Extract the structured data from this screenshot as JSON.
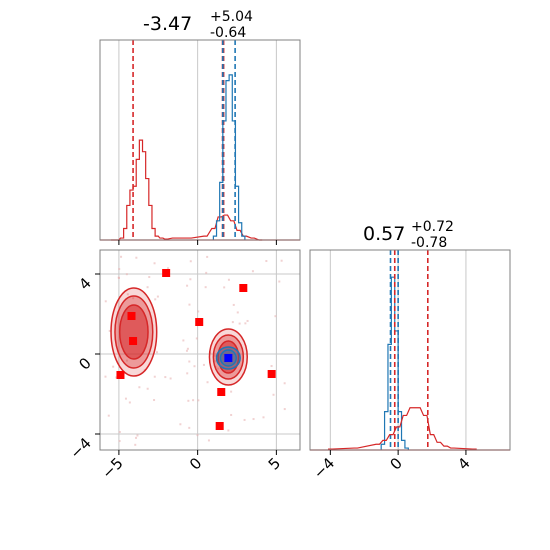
{
  "colors": {
    "red": "#d62728",
    "blue": "#1f77b4",
    "marker_red": "#ff0000",
    "marker_blue": "#0000ff",
    "frame": "#808080",
    "grid": "#c8c8c8"
  },
  "chart_data": [
    {
      "panel": "marginal-x",
      "type": "histogram",
      "title": {
        "median": "-3.47",
        "plus": "+5.04",
        "minus": "-0.64"
      },
      "xlim": [
        -6.2,
        6.5
      ],
      "ylim": [
        0,
        1
      ],
      "grid": true,
      "series": [
        {
          "color": "red",
          "bins": [
            [
              -5.4,
              0
            ],
            [
              -5.1,
              0
            ],
            [
              -4.8,
              0.01
            ],
            [
              -4.6,
              0.06
            ],
            [
              -4.4,
              0.18
            ],
            [
              -4.2,
              0.26
            ],
            [
              -4.0,
              0.28
            ],
            [
              -3.8,
              0.42
            ],
            [
              -3.6,
              0.52
            ],
            [
              -3.4,
              0.46
            ],
            [
              -3.2,
              0.32
            ],
            [
              -3.0,
              0.18
            ],
            [
              -2.8,
              0.06
            ],
            [
              -2.6,
              0.02
            ],
            [
              -2.3,
              0.01
            ],
            [
              -2.0,
              0.005
            ],
            [
              -1.5,
              0.01
            ],
            [
              -0.5,
              0.01
            ],
            [
              0.5,
              0.02
            ],
            [
              1.0,
              0.06
            ],
            [
              1.4,
              0.12
            ],
            [
              1.8,
              0.13
            ],
            [
              2.2,
              0.1
            ],
            [
              2.6,
              0.05
            ],
            [
              3.0,
              0.02
            ],
            [
              3.5,
              0.01
            ],
            [
              4.0,
              0.0
            ]
          ],
          "quantile_lines": [
            -4.1,
            1.58,
            1.65
          ]
        },
        {
          "color": "blue",
          "bins": [
            [
              1.1,
              0.02
            ],
            [
              1.3,
              0.1
            ],
            [
              1.5,
              0.3
            ],
            [
              1.7,
              0.62
            ],
            [
              1.9,
              0.83
            ],
            [
              2.1,
              0.86
            ],
            [
              2.3,
              0.62
            ],
            [
              2.5,
              0.28
            ],
            [
              2.7,
              0.09
            ],
            [
              2.9,
              0.02
            ]
          ],
          "quantile_lines": [
            1.6,
            2.38
          ]
        }
      ]
    },
    {
      "panel": "marginal-y",
      "type": "histogram",
      "title": {
        "median": "0.57",
        "plus": "+0.72",
        "minus": "-0.78"
      },
      "xlim": [
        -5.2,
        6.6
      ],
      "ylim": [
        0,
        1
      ],
      "grid": true,
      "series": [
        {
          "color": "blue",
          "bins": [
            [
              -0.9,
              0.03
            ],
            [
              -0.7,
              0.2
            ],
            [
              -0.5,
              0.55
            ],
            [
              -0.3,
              0.9
            ],
            [
              -0.1,
              0.62
            ],
            [
              0.1,
              0.2
            ],
            [
              0.3,
              0.05
            ],
            [
              0.5,
              0.01
            ]
          ],
          "quantile_lines": [
            -0.45,
            0.0
          ]
        },
        {
          "color": "red",
          "bins": [
            [
              -4.0,
              0.005
            ],
            [
              -2.5,
              0.01
            ],
            [
              -1.2,
              0.03
            ],
            [
              -0.8,
              0.05
            ],
            [
              -0.4,
              0.08
            ],
            [
              0.0,
              0.12
            ],
            [
              0.4,
              0.18
            ],
            [
              0.8,
              0.22
            ],
            [
              1.2,
              0.22
            ],
            [
              1.6,
              0.18
            ],
            [
              2.0,
              0.08
            ],
            [
              2.4,
              0.04
            ],
            [
              2.8,
              0.02
            ],
            [
              3.2,
              0.01
            ],
            [
              4.5,
              0.005
            ]
          ],
          "quantile_lines": [
            -0.2,
            1.75
          ]
        }
      ]
    },
    {
      "panel": "joint",
      "type": "scatter",
      "xlim": [
        -6.2,
        6.5
      ],
      "ylim": [
        -4.8,
        5.2
      ],
      "x_ticks": [
        "−5",
        "0",
        "5"
      ],
      "y_ticks": [
        "4",
        "0",
        "−4"
      ],
      "grid": true,
      "red_markers": [
        [
          -4.2,
          1.9
        ],
        [
          -4.1,
          0.65
        ],
        [
          -2.0,
          4.05
        ],
        [
          0.1,
          1.6
        ],
        [
          2.9,
          3.3
        ],
        [
          -4.9,
          -1.05
        ],
        [
          1.5,
          -1.9
        ],
        [
          1.4,
          -3.6
        ],
        [
          4.7,
          -1.0
        ]
      ],
      "blue_markers": [
        [
          1.95,
          -0.2
        ]
      ],
      "red_contours": [
        {
          "cx": -4.05,
          "cy": 1.1,
          "rx": 1.45,
          "ry": 2.2
        },
        {
          "cx": -4.05,
          "cy": 1.1,
          "rx": 1.2,
          "ry": 1.8
        },
        {
          "cx": -4.05,
          "cy": 1.1,
          "rx": 0.9,
          "ry": 1.35
        },
        {
          "cx": 1.95,
          "cy": -0.15,
          "rx": 1.2,
          "ry": 1.4
        },
        {
          "cx": 1.95,
          "cy": -0.15,
          "rx": 0.95,
          "ry": 1.1
        },
        {
          "cx": 1.95,
          "cy": -0.15,
          "rx": 0.65,
          "ry": 0.8
        }
      ],
      "blue_contours": [
        {
          "cx": 1.95,
          "cy": -0.2,
          "rx": 0.75,
          "ry": 0.55
        },
        {
          "cx": 1.95,
          "cy": -0.2,
          "rx": 0.5,
          "ry": 0.4
        }
      ]
    }
  ],
  "axes": {
    "x_tick_labels": [
      "−5",
      "0",
      "5"
    ],
    "y_tick_labels": [
      "4",
      "0",
      "−4"
    ],
    "ymarg_tick_labels": [
      "−4",
      "0",
      "4"
    ]
  }
}
